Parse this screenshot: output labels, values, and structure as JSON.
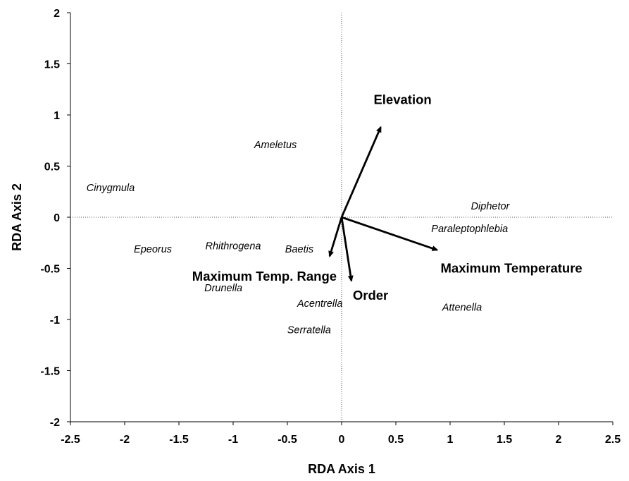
{
  "chart_data": {
    "type": "scatter",
    "xlabel": "RDA Axis 1",
    "ylabel": "RDA Axis 2",
    "xlim": [
      -2.5,
      2.5
    ],
    "ylim": [
      -2,
      2
    ],
    "x_ticks": [
      "-2.5",
      "-2",
      "-1.5",
      "-1",
      "-0.5",
      "0",
      "0.5",
      "1",
      "1.5",
      "2",
      "2.5"
    ],
    "y_ticks": [
      "2",
      "1.5",
      "1",
      "0.5",
      "0",
      "-0.5",
      "-1",
      "-1.5",
      "-2"
    ],
    "grid": false,
    "zero_lines": "dotted",
    "species": [
      {
        "label": "Ameletus",
        "x": -0.61,
        "y": 0.71
      },
      {
        "label": "Cinygmula",
        "x": -2.13,
        "y": 0.29
      },
      {
        "label": "Diphetor",
        "x": 1.37,
        "y": 0.11
      },
      {
        "label": "Paraleptophlebia",
        "x": 1.18,
        "y": -0.11
      },
      {
        "label": "Epeorus",
        "x": -1.74,
        "y": -0.31
      },
      {
        "label": "Rhithrogena",
        "x": -1.0,
        "y": -0.28
      },
      {
        "label": "Baetis",
        "x": -0.39,
        "y": -0.31
      },
      {
        "label": "Drunella",
        "x": -1.09,
        "y": -0.69
      },
      {
        "label": "Acentrella",
        "x": -0.2,
        "y": -0.84
      },
      {
        "label": "Serratella",
        "x": -0.3,
        "y": -1.1
      },
      {
        "label": "Attenella",
        "x": 1.11,
        "y": -0.88
      }
    ],
    "vectors": [
      {
        "label": "Elevation",
        "x": 0.36,
        "y": 0.88
      },
      {
        "label": "Maximum Temperature",
        "x": 0.88,
        "y": -0.32
      },
      {
        "label": "Maximum Temp. Range",
        "x": -0.11,
        "y": -0.38
      },
      {
        "label": "Order",
        "x": 0.09,
        "y": -0.62
      }
    ]
  }
}
